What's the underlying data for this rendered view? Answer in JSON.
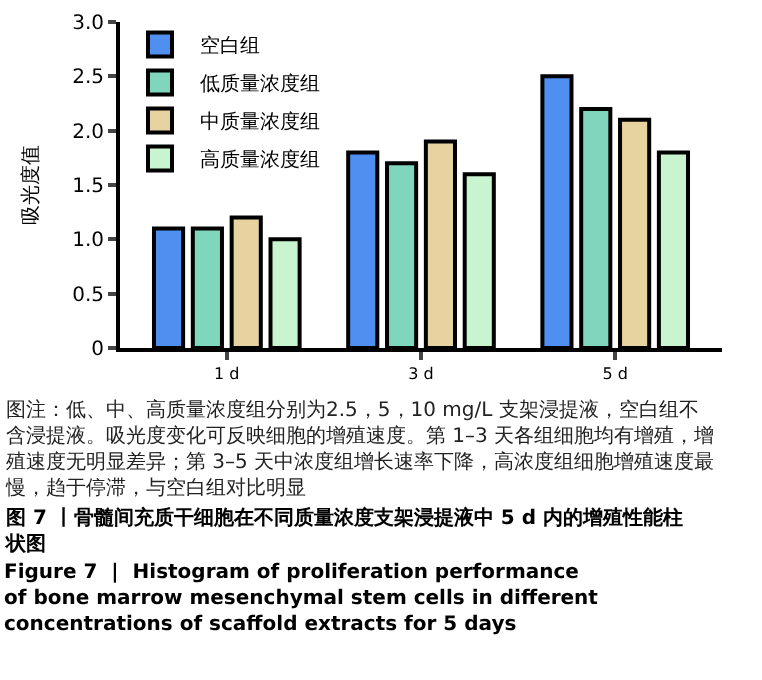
{
  "chart_data": {
    "type": "bar",
    "ylabel": "吸光度值",
    "categories": [
      "1 d",
      "3 d",
      "5 d"
    ],
    "series": [
      {
        "name": "空白组",
        "color": "#4f8ff0",
        "values": [
          1.1,
          1.8,
          2.5
        ]
      },
      {
        "name": "低质量浓度组",
        "color": "#7fd6bd",
        "values": [
          1.1,
          1.7,
          2.2
        ]
      },
      {
        "name": "中质量浓度组",
        "color": "#e6d3a0",
        "values": [
          1.2,
          1.9,
          2.1
        ]
      },
      {
        "name": "高质量浓度组",
        "color": "#c8f5cf",
        "values": [
          1.0,
          1.6,
          1.8
        ]
      }
    ],
    "ylim": [
      0,
      3
    ],
    "yticks": [
      0,
      {
        "value": 0.5,
        "label": "0.5"
      },
      {
        "value": 1,
        "label": "1.0"
      },
      {
        "value": 1.5,
        "label": "1.5"
      },
      {
        "value": 2,
        "label": "2.0"
      },
      {
        "value": 2.5,
        "label": "2.5"
      },
      {
        "value": 3,
        "label": "3.0"
      }
    ],
    "legend": "top left",
    "annotations": [
      "图注：低、中、高质量浓度组分别为2.5，5，10 mg/L 支架浸提液，空白组不含浸提液。吸光度变化可反映细胞的增殖速度。第 1–3 天各组细胞均有增殖，增殖速度无明显差异；第 3–5 天中浓度组增长速率下降，高浓度组细胞增殖速度最慢，趋于停滞，与空白组对比明显",
      "图 7 丨骨髓间充质干细胞在不同质量浓度支架浸提液中 5 d 内的增殖性能柱状图",
      "Figure 7  |  Histogram of proliferation performance of bone marrow mesenchymal stem cells in different concentrations of scaffold extracts for 5 days"
    ]
  }
}
